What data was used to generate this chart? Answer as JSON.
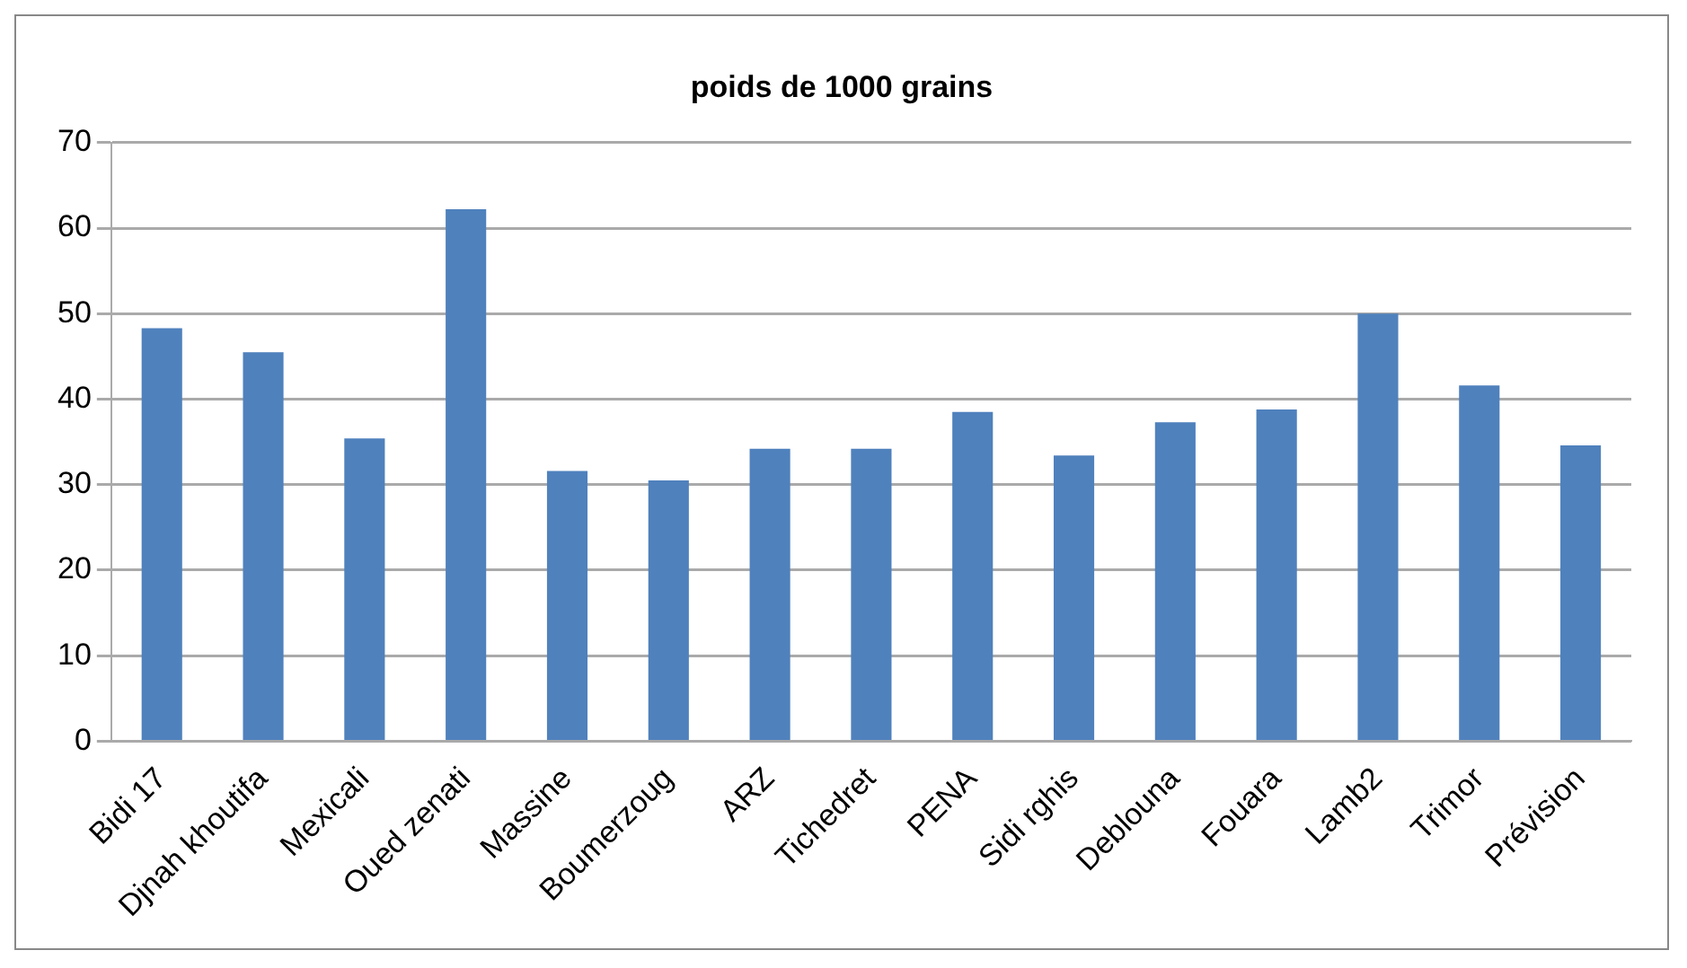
{
  "chart_data": {
    "type": "bar",
    "title": "poids de 1000 grains",
    "categories": [
      "Bidi 17",
      "Djnah khoutifa",
      "Mexicali",
      "Oued zenati",
      "Massine",
      "Boumerzoug",
      "ARZ",
      "Tichedret",
      "PENA",
      "Sidi rghis",
      "Deblouna",
      "Fouara",
      "Lamb2",
      "Trimor",
      "Prévision"
    ],
    "values": [
      48.3,
      45.5,
      35.4,
      62.2,
      31.6,
      30.5,
      34.2,
      34.2,
      38.5,
      33.4,
      37.3,
      38.8,
      50,
      41.6,
      34.6
    ],
    "color": "#4f81bd",
    "ylim": [
      0,
      70
    ],
    "yticks": [
      0,
      10,
      20,
      30,
      40,
      50,
      60,
      70
    ],
    "grid": "y",
    "legend": false
  }
}
